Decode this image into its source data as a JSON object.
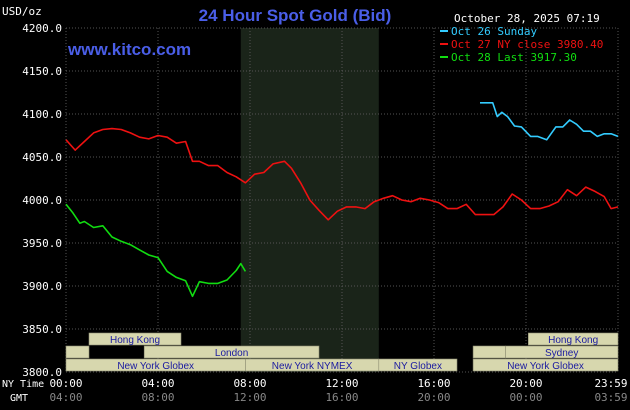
{
  "header": {
    "unit": "USD/oz",
    "title": "24 Hour Spot Gold (Bid)",
    "timestamp": "October 28, 2025 07:19",
    "site": "www.kitco.com"
  },
  "colors": {
    "background": "#000000",
    "title": "#4a5ee8",
    "site": "#4a5ee8",
    "grid": "#555555",
    "axis_text": "#ffffff",
    "gmt_text": "#888888",
    "session_bar": "#d7d7ae",
    "session_text": "#1a1aa0",
    "shade": "#1a2419"
  },
  "chart_data": {
    "type": "line",
    "title": "24 Hour Spot Gold (Bid)",
    "ylabel": "USD/oz",
    "ylim": [
      3800,
      4200
    ],
    "yticks": [
      "4200.0",
      "4150.0",
      "4100.0",
      "4050.0",
      "4000.0",
      "3950.0",
      "3900.0",
      "3850.0",
      "3800.0"
    ],
    "x_ticks_ny": [
      "00:00",
      "04:00",
      "08:00",
      "12:00",
      "16:00",
      "20:00",
      "23:59"
    ],
    "x_ticks_gmt": [
      "04:00",
      "08:00",
      "12:00",
      "16:00",
      "20:00",
      "00:00",
      "03:59"
    ],
    "x_row_labels": {
      "ny": "NY Time",
      "gmt": "GMT"
    },
    "x_unit": "hours (NY time)",
    "xlim": [
      0,
      24
    ],
    "legend_position": "top-right",
    "series": [
      {
        "name": "Oct 26 Sunday",
        "color": "#33ccff",
        "x": [
          18,
          18.55,
          18.75,
          18.95,
          19.2,
          19.5,
          19.8,
          20.2,
          20.5,
          20.9,
          21.3,
          21.6,
          21.9,
          22.2,
          22.5,
          22.8,
          23.1,
          23.4,
          23.7,
          24
        ],
        "y": [
          4113,
          4113,
          4097,
          4102,
          4097,
          4086,
          4085,
          4074,
          4074,
          4070,
          4085,
          4085,
          4093,
          4088,
          4080,
          4080,
          4074,
          4077,
          4077,
          4074
        ]
      },
      {
        "name": "Oct 27 NY close 3980.40",
        "color": "#ee1111",
        "x": [
          0,
          0.4,
          0.8,
          1.2,
          1.6,
          2,
          2.4,
          2.8,
          3.2,
          3.6,
          4,
          4.4,
          4.8,
          5.2,
          5.5,
          5.8,
          6.2,
          6.6,
          7,
          7.4,
          7.8,
          8.2,
          8.6,
          9,
          9.5,
          9.8,
          10.2,
          10.6,
          11,
          11.4,
          11.8,
          12.2,
          12.6,
          13,
          13.4,
          13.8,
          14.2,
          14.6,
          15,
          15.4,
          15.8,
          16.2,
          16.6,
          17,
          17.4,
          17.8,
          18.2,
          18.6,
          19,
          19.4,
          19.8,
          20.2,
          20.6,
          21,
          21.4,
          21.8,
          22.2,
          22.6,
          23,
          23.4,
          23.7,
          24
        ],
        "y": [
          4070,
          4058,
          4068,
          4078,
          4082,
          4083,
          4082,
          4078,
          4073,
          4071,
          4075,
          4073,
          4066,
          4068,
          4045,
          4045,
          4040,
          4040,
          4032,
          4027,
          4020,
          4030,
          4032,
          4042,
          4045,
          4037,
          4020,
          4000,
          3988,
          3977,
          3987,
          3992,
          3992,
          3990,
          3998,
          4002,
          4005,
          4000,
          3998,
          4002,
          4000,
          3997,
          3990,
          3990,
          3995,
          3983,
          3983,
          3983,
          3992,
          4007,
          4000,
          3990,
          3990,
          3993,
          3998,
          4012,
          4005,
          4015,
          4010,
          4004,
          3990,
          3992
        ]
      },
      {
        "name": "Oct 28 Last 3917.30",
        "color": "#11dd11",
        "x": [
          0,
          0.3,
          0.6,
          0.8,
          1.2,
          1.6,
          2,
          2.4,
          2.8,
          3.2,
          3.6,
          4,
          4.4,
          4.8,
          5.2,
          5.5,
          5.8,
          6.2,
          6.6,
          7,
          7.4,
          7.6,
          7.8
        ],
        "y": [
          3995,
          3985,
          3973,
          3975,
          3968,
          3970,
          3957,
          3952,
          3948,
          3942,
          3936,
          3933,
          3917,
          3910,
          3906,
          3888,
          3905,
          3903,
          3903,
          3907,
          3918,
          3926,
          3917
        ]
      }
    ],
    "legend": [
      {
        "label": "Oct 26 Sunday",
        "color": "#33ccff"
      },
      {
        "label": "Oct 27 NY close 3980.40",
        "color": "#ee1111"
      },
      {
        "label": "Oct 28 Last 3917.30",
        "color": "#11dd11"
      }
    ],
    "shaded_hours": [
      7.6,
      13.6
    ],
    "sessions": [
      {
        "label": "Hong Kong",
        "row": 0,
        "start": 1.0,
        "end": 5.0
      },
      {
        "label": "",
        "row": 1,
        "start": 0,
        "end": 1.0
      },
      {
        "label": "London",
        "row": 1,
        "start": 3.4,
        "end": 11.0
      },
      {
        "label": "",
        "row": 1,
        "start": 0,
        "end": 0
      },
      {
        "label": "New York Globex",
        "row": 2,
        "start": 0,
        "end": 7.8
      },
      {
        "label": "New York NYMEX",
        "row": 2,
        "start": 7.8,
        "end": 13.6
      },
      {
        "label": "NY Globex",
        "row": 2,
        "start": 13.6,
        "end": 17
      },
      {
        "label": "Hong Kong",
        "row": 0,
        "start": 20.1,
        "end": 24
      },
      {
        "label": "Sydney",
        "row": 1,
        "start": 19.1,
        "end": 24
      },
      {
        "label": "",
        "row": 1,
        "start": 17.7,
        "end": 19.1
      },
      {
        "label": "New York Globex",
        "row": 2,
        "start": 17.7,
        "end": 24
      }
    ]
  }
}
